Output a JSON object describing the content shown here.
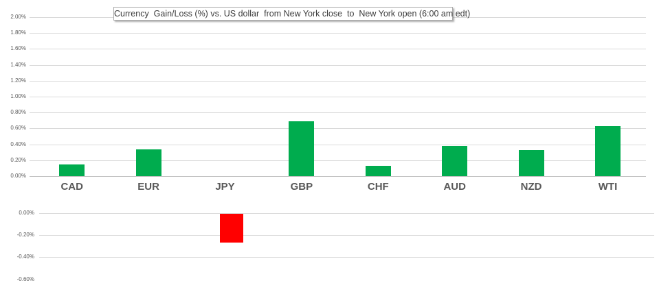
{
  "chart_data": {
    "type": "bar",
    "title": "Currency  Gain/Loss (%) vs. US dollar  from New York close  to  New York open (6:00 am edt)",
    "categories": [
      "CAD",
      "EUR",
      "JPY",
      "GBP",
      "CHF",
      "AUD",
      "NZD",
      "WTI"
    ],
    "values": [
      0.15,
      0.34,
      -0.26,
      0.69,
      0.13,
      0.38,
      0.33,
      0.63
    ],
    "unit": "%",
    "grid": true,
    "legend": false,
    "bar_color_positive": "#00AC4E",
    "bar_color_negative": "#FF0000",
    "upper_axis": {
      "range": [
        0,
        2.0
      ],
      "tick_step": 0.2,
      "tick_labels": [
        "2.00%",
        "1.80%",
        "1.60%",
        "1.40%",
        "1.20%",
        "1.00%",
        "0.80%",
        "0.60%",
        "0.40%",
        "0.20%",
        "0.00%"
      ]
    },
    "lower_axis": {
      "range": [
        0,
        -0.6
      ],
      "tick_step": 0.2,
      "tick_labels": [
        "0.00%",
        "-0.20%",
        "-0.40%",
        "-0.60%"
      ]
    }
  },
  "colors": {
    "gridline": "#D9D9D9",
    "zero_axis": "#BFBFBF",
    "tick_text": "#595959",
    "category_text": "#595959",
    "title_text": "#3b3b3b",
    "title_border": "#ABABAB",
    "background": "#FFFFFF"
  }
}
